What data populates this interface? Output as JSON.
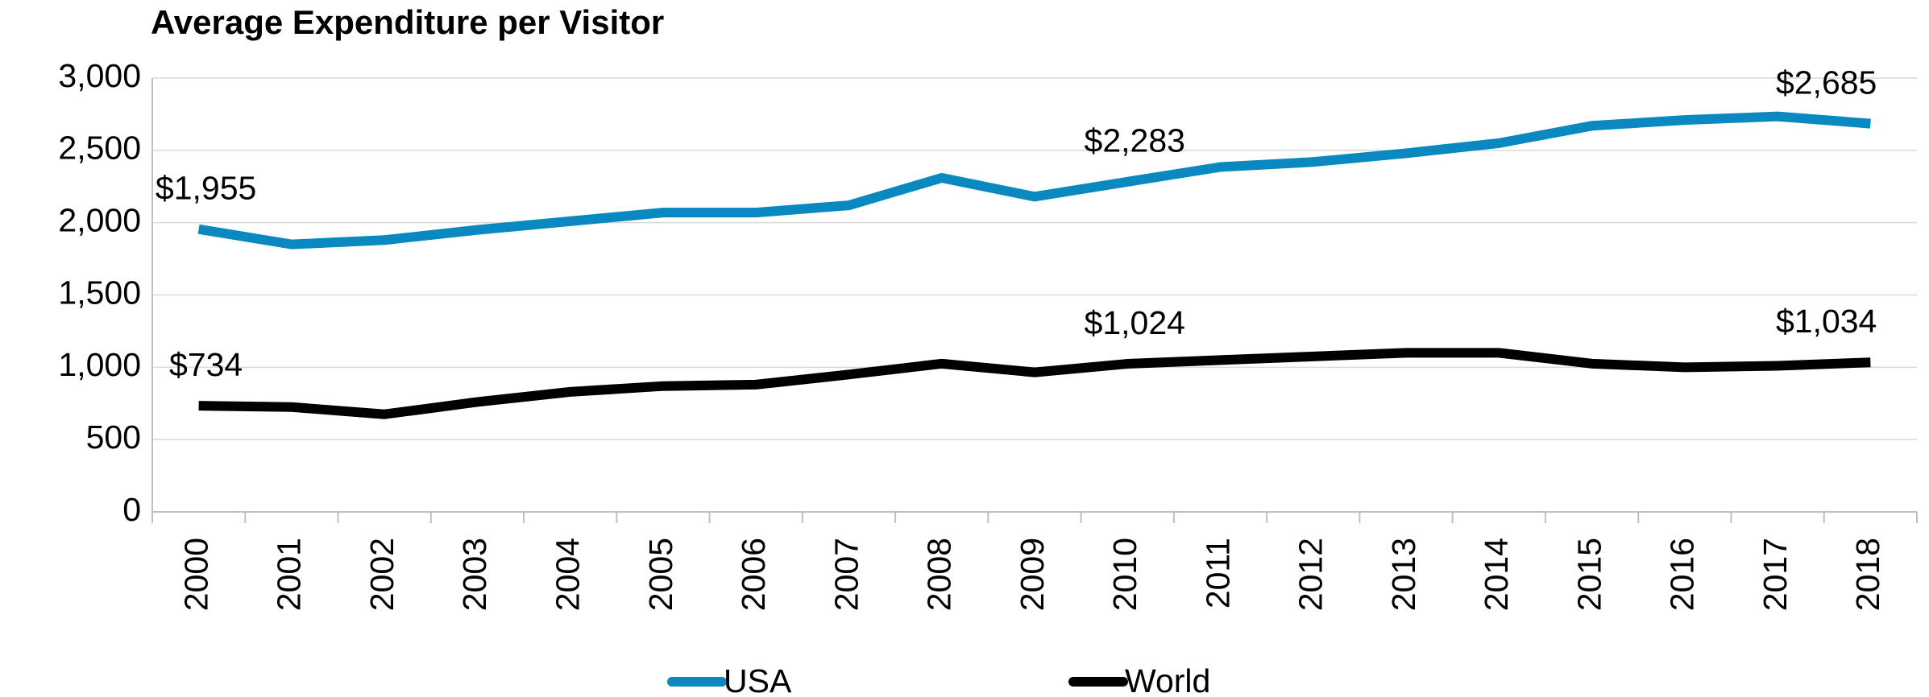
{
  "chart_data": {
    "type": "line",
    "title": "Average Expenditure per Visitor",
    "categories": [
      "2000",
      "2001",
      "2002",
      "2003",
      "2004",
      "2005",
      "2006",
      "2007",
      "2008",
      "2009",
      "2010",
      "2011",
      "2012",
      "2013",
      "2014",
      "2015",
      "2016",
      "2017",
      "2018"
    ],
    "series": [
      {
        "name": "USA",
        "color": "#0a88c0",
        "values": [
          1955,
          1850,
          1880,
          1950,
          2010,
          2070,
          2070,
          2120,
          2310,
          2180,
          2283,
          2385,
          2420,
          2480,
          2550,
          2670,
          2710,
          2735,
          2685
        ],
        "value_labels": [
          "$1,955",
          null,
          null,
          null,
          null,
          null,
          null,
          null,
          null,
          null,
          "$2,283",
          null,
          null,
          null,
          null,
          null,
          null,
          null,
          "$2,685"
        ]
      },
      {
        "name": "World",
        "color": "#000000",
        "values": [
          734,
          725,
          675,
          760,
          830,
          870,
          880,
          950,
          1025,
          965,
          1024,
          1050,
          1075,
          1100,
          1100,
          1025,
          1000,
          1010,
          1034
        ],
        "value_labels": [
          "$734",
          null,
          null,
          null,
          null,
          null,
          null,
          null,
          null,
          null,
          "$1,024",
          null,
          null,
          null,
          null,
          null,
          null,
          null,
          "$1,034"
        ]
      }
    ],
    "ylim": [
      0,
      3000
    ],
    "yticks": [
      0,
      500,
      {
        "value": 1000,
        "label": "1,000"
      },
      {
        "value": 1500,
        "label": "1,500"
      },
      {
        "value": 2000,
        "label": "2,000"
      },
      {
        "value": 2500,
        "label": "2,500"
      },
      {
        "value": 3000,
        "label": "3,000"
      }
    ],
    "grid": true,
    "legend": "bottom"
  }
}
